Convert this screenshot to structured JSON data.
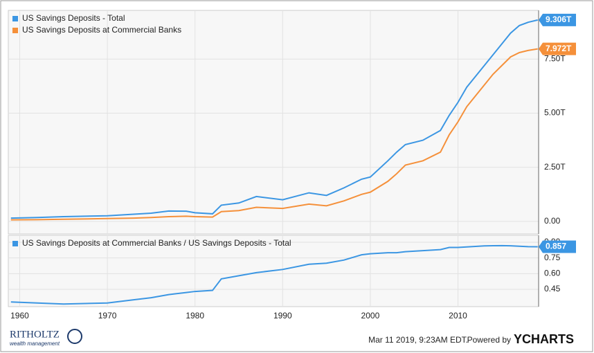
{
  "chart_data": [
    {
      "type": "line",
      "grid": true,
      "x": [
        1959,
        1962,
        1965,
        1970,
        1973,
        1975,
        1977,
        1979,
        1980,
        1982,
        1983,
        1985,
        1987,
        1990,
        1993,
        1995,
        1997,
        1999,
        2000,
        2002,
        2003,
        2004,
        2006,
        2008,
        2009,
        2010,
        2011,
        2012,
        2013,
        2014,
        2015,
        2016,
        2017,
        2018,
        2019.1
      ],
      "xlim": [
        1958.7,
        2019.2
      ],
      "ylim": [
        -0.58,
        9.75
      ],
      "yticks": [
        {
          "value": 0,
          "label": "0.00"
        },
        {
          "value": 2.5,
          "label": "2.50T"
        },
        {
          "value": 5,
          "label": "5.00T"
        },
        {
          "value": 7.5,
          "label": "7.50T"
        }
      ],
      "series": [
        {
          "name": "US Savings Deposits - Total",
          "color": "#3b96e3",
          "values": [
            0.15,
            0.18,
            0.22,
            0.26,
            0.33,
            0.38,
            0.48,
            0.47,
            0.4,
            0.35,
            0.75,
            0.85,
            1.15,
            1.0,
            1.32,
            1.2,
            1.55,
            1.95,
            2.05,
            2.8,
            3.2,
            3.55,
            3.75,
            4.2,
            4.9,
            5.5,
            6.2,
            6.7,
            7.2,
            7.7,
            8.2,
            8.7,
            9.05,
            9.2,
            9.306
          ],
          "value_labels": [
            null,
            null,
            null,
            null,
            null,
            null,
            null,
            null,
            null,
            null,
            null,
            null,
            null,
            null,
            null,
            null,
            null,
            null,
            null,
            null,
            null,
            null,
            null,
            null,
            null,
            null,
            null,
            null,
            null,
            null,
            null,
            null,
            null,
            null,
            "9.306T"
          ]
        },
        {
          "name": "US Savings Deposits at Commercial Banks",
          "color": "#f5903a",
          "values": [
            0.07,
            0.08,
            0.1,
            0.13,
            0.15,
            0.18,
            0.22,
            0.24,
            0.22,
            0.2,
            0.45,
            0.5,
            0.65,
            0.6,
            0.8,
            0.72,
            0.95,
            1.25,
            1.35,
            1.85,
            2.2,
            2.6,
            2.8,
            3.2,
            4.0,
            4.6,
            5.3,
            5.8,
            6.3,
            6.8,
            7.2,
            7.6,
            7.8,
            7.9,
            7.972
          ],
          "value_labels": [
            null,
            null,
            null,
            null,
            null,
            null,
            null,
            null,
            null,
            null,
            null,
            null,
            null,
            null,
            null,
            null,
            null,
            null,
            null,
            null,
            null,
            null,
            null,
            null,
            null,
            null,
            null,
            null,
            null,
            null,
            null,
            null,
            null,
            null,
            "7.972T"
          ]
        }
      ]
    },
    {
      "type": "line",
      "grid": true,
      "x": [
        1959,
        1962,
        1965,
        1970,
        1973,
        1975,
        1977,
        1979,
        1980,
        1982,
        1983,
        1985,
        1987,
        1990,
        1993,
        1995,
        1997,
        1999,
        2000,
        2002,
        2003,
        2004,
        2006,
        2008,
        2009,
        2010,
        2011,
        2012,
        2013,
        2014,
        2015,
        2016,
        2017,
        2018,
        2019.1
      ],
      "xlim": [
        1958.7,
        2019.2
      ],
      "ylim": [
        0.285,
        0.966
      ],
      "xticks": [
        1960,
        1970,
        1980,
        1990,
        2000,
        2010
      ],
      "yticks": [
        {
          "value": 0.9,
          "label": "0.90"
        },
        {
          "value": 0.75,
          "label": "0.75"
        },
        {
          "value": 0.6,
          "label": "0.60"
        },
        {
          "value": 0.45,
          "label": "0.45"
        }
      ],
      "series": [
        {
          "name": "US Savings Deposits at Commercial Banks / US Savings Deposits - Total",
          "color": "#3b96e3",
          "values": [
            0.33,
            0.32,
            0.31,
            0.32,
            0.35,
            0.37,
            0.4,
            0.42,
            0.43,
            0.44,
            0.55,
            0.58,
            0.61,
            0.64,
            0.69,
            0.7,
            0.73,
            0.78,
            0.79,
            0.8,
            0.8,
            0.81,
            0.82,
            0.83,
            0.85,
            0.85,
            0.855,
            0.86,
            0.865,
            0.867,
            0.868,
            0.866,
            0.862,
            0.858,
            0.857
          ],
          "value_labels": [
            null,
            null,
            null,
            null,
            null,
            null,
            null,
            null,
            null,
            null,
            null,
            null,
            null,
            null,
            null,
            null,
            null,
            null,
            null,
            null,
            null,
            null,
            null,
            null,
            null,
            null,
            null,
            null,
            null,
            null,
            null,
            null,
            null,
            null,
            "0.857"
          ]
        }
      ]
    }
  ],
  "footer": {
    "brand": "RITHOLTZ",
    "brand_sub": "wealth management",
    "timestamp": "Mar 11 2019, 9:23AM EDT.",
    "powered": "Powered by",
    "ycharts": "YCHARTS"
  }
}
